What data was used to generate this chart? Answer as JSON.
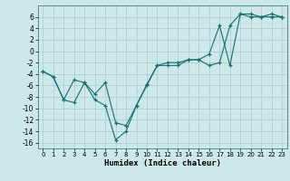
{
  "title": "",
  "xlabel": "Humidex (Indice chaleur)",
  "bg_color": "#cce8e8",
  "grid_color": "#aacccc",
  "line_color": "#1a6e6e",
  "marker": "+",
  "xlim": [
    -0.5,
    23.5
  ],
  "ylim": [
    -17,
    8
  ],
  "xticks": [
    0,
    1,
    2,
    3,
    4,
    5,
    6,
    7,
    8,
    9,
    10,
    11,
    12,
    13,
    14,
    15,
    16,
    17,
    18,
    19,
    20,
    21,
    22,
    23
  ],
  "yticks": [
    -16,
    -14,
    -12,
    -10,
    -8,
    -6,
    -4,
    -2,
    0,
    2,
    4,
    6
  ],
  "line1_x": [
    0,
    1,
    2,
    3,
    4,
    5,
    6,
    7,
    8,
    9,
    10,
    11,
    12,
    13,
    14,
    15,
    16,
    17,
    18,
    19,
    20,
    21,
    22,
    23
  ],
  "line1_y": [
    -3.5,
    -4.5,
    -8.5,
    -9.0,
    -5.5,
    -8.5,
    -9.5,
    -15.5,
    -14.0,
    -9.5,
    -6.0,
    -2.5,
    -2.5,
    -2.5,
    -1.5,
    -1.5,
    -0.5,
    4.5,
    -2.5,
    6.5,
    6.5,
    6.0,
    6.5,
    6.0
  ],
  "line2_x": [
    0,
    1,
    2,
    3,
    4,
    5,
    6,
    7,
    8,
    9,
    10,
    11,
    12,
    13,
    14,
    15,
    16,
    17,
    18,
    19,
    20,
    21,
    22,
    23
  ],
  "line2_y": [
    -3.5,
    -4.5,
    -8.5,
    -5.0,
    -5.5,
    -7.5,
    -5.5,
    -12.5,
    -13.0,
    -9.5,
    -5.8,
    -2.5,
    -2.0,
    -2.0,
    -1.5,
    -1.5,
    -2.5,
    -2.0,
    4.5,
    6.5,
    6.0,
    6.0,
    6.0,
    6.0
  ]
}
